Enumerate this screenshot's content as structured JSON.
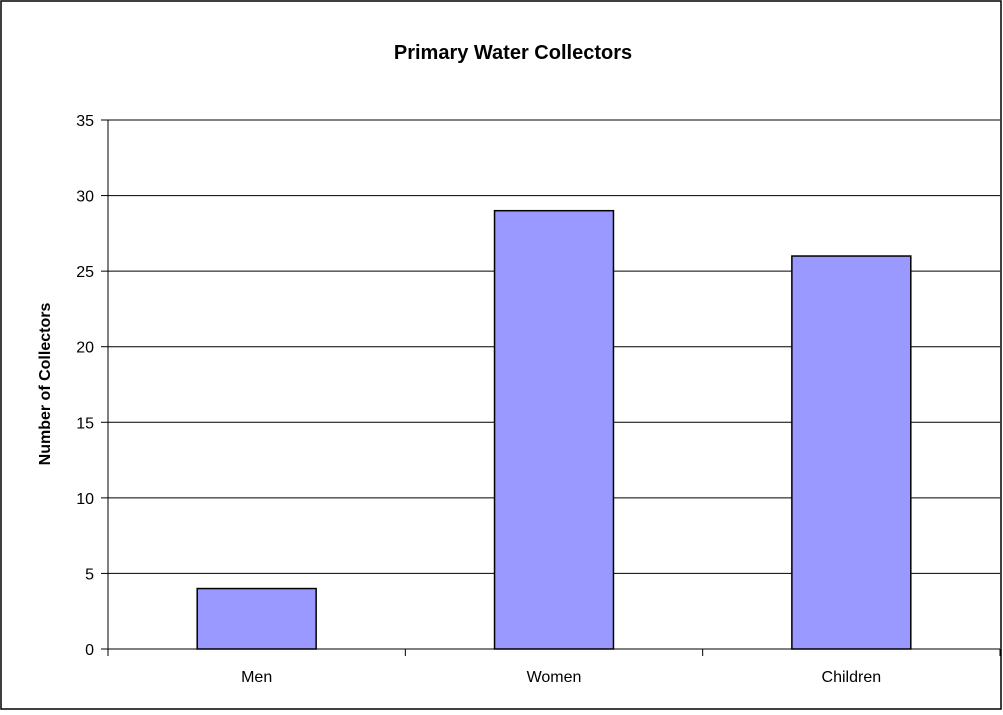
{
  "chart_data": {
    "type": "bar",
    "title": "Primary Water Collectors",
    "xlabel": "",
    "ylabel": "Number of Collectors",
    "categories": [
      "Men",
      "Women",
      "Children"
    ],
    "values": [
      4,
      29,
      26
    ],
    "ylim": [
      0,
      35
    ],
    "yticks": [
      "0",
      "5",
      "10",
      "15",
      "20",
      "25",
      "30",
      "35"
    ],
    "grid": true,
    "legend": "none",
    "bar_color": "#9999ff",
    "bar_stroke": "#000000"
  }
}
